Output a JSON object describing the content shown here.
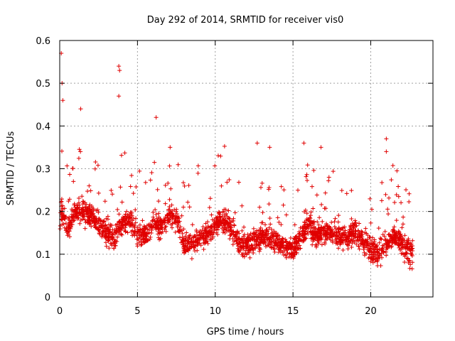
{
  "chart_data": {
    "type": "scatter",
    "title": "Day 292 of 2014, SRMTID for receiver vis0",
    "xlabel": "GPS time / hours",
    "ylabel": "SRMTID / TECUs",
    "xlim": [
      0,
      24
    ],
    "ylim": [
      0,
      0.6
    ],
    "x_ticks": [
      0,
      5,
      10,
      15,
      20
    ],
    "x_tick_labels": [
      "0",
      "5",
      "10",
      "15",
      "20"
    ],
    "y_ticks": [
      0,
      0.1,
      0.2,
      0.3,
      0.4,
      0.5,
      0.6
    ],
    "y_tick_labels": [
      "0",
      "0.1",
      "0.2",
      "0.3",
      "0.4",
      "0.5",
      "0.6"
    ],
    "grid": true,
    "marker": "+",
    "series": [
      {
        "name": "SRMTID",
        "color": "#e00000",
        "profile_hours": [
          0,
          0.1,
          0.5,
          1,
          1.5,
          2,
          2.5,
          3,
          3.5,
          4,
          4.5,
          5,
          5.5,
          6,
          6.5,
          7,
          7.5,
          8,
          8.5,
          9,
          9.5,
          10,
          10.5,
          11,
          11.5,
          12,
          12.5,
          13,
          13.5,
          14,
          14.5,
          15,
          15.5,
          16,
          16.5,
          17,
          17.5,
          18,
          18.5,
          19,
          19.5,
          20,
          20.5,
          21,
          21.5,
          22,
          22.7
        ],
        "profile_median": [
          0.17,
          0.2,
          0.16,
          0.2,
          0.2,
          0.19,
          0.17,
          0.15,
          0.14,
          0.17,
          0.18,
          0.15,
          0.14,
          0.17,
          0.16,
          0.19,
          0.18,
          0.12,
          0.12,
          0.14,
          0.15,
          0.17,
          0.18,
          0.16,
          0.13,
          0.12,
          0.13,
          0.14,
          0.14,
          0.13,
          0.12,
          0.11,
          0.14,
          0.17,
          0.14,
          0.15,
          0.15,
          0.14,
          0.14,
          0.15,
          0.13,
          0.11,
          0.1,
          0.12,
          0.14,
          0.12,
          0.1
        ],
        "peaks": [
          {
            "x": 0.1,
            "y": 0.57
          },
          {
            "x": 0.15,
            "y": 0.5
          },
          {
            "x": 0.2,
            "y": 0.46
          },
          {
            "x": 1.35,
            "y": 0.44
          },
          {
            "x": 3.8,
            "y": 0.54
          },
          {
            "x": 3.85,
            "y": 0.53
          },
          {
            "x": 3.8,
            "y": 0.47
          },
          {
            "x": 6.2,
            "y": 0.42
          },
          {
            "x": 7.1,
            "y": 0.35
          },
          {
            "x": 12.7,
            "y": 0.36
          },
          {
            "x": 13.5,
            "y": 0.35
          },
          {
            "x": 15.7,
            "y": 0.36
          },
          {
            "x": 16.8,
            "y": 0.35
          },
          {
            "x": 21.0,
            "y": 0.37
          },
          {
            "x": 21.0,
            "y": 0.34
          }
        ]
      }
    ]
  }
}
